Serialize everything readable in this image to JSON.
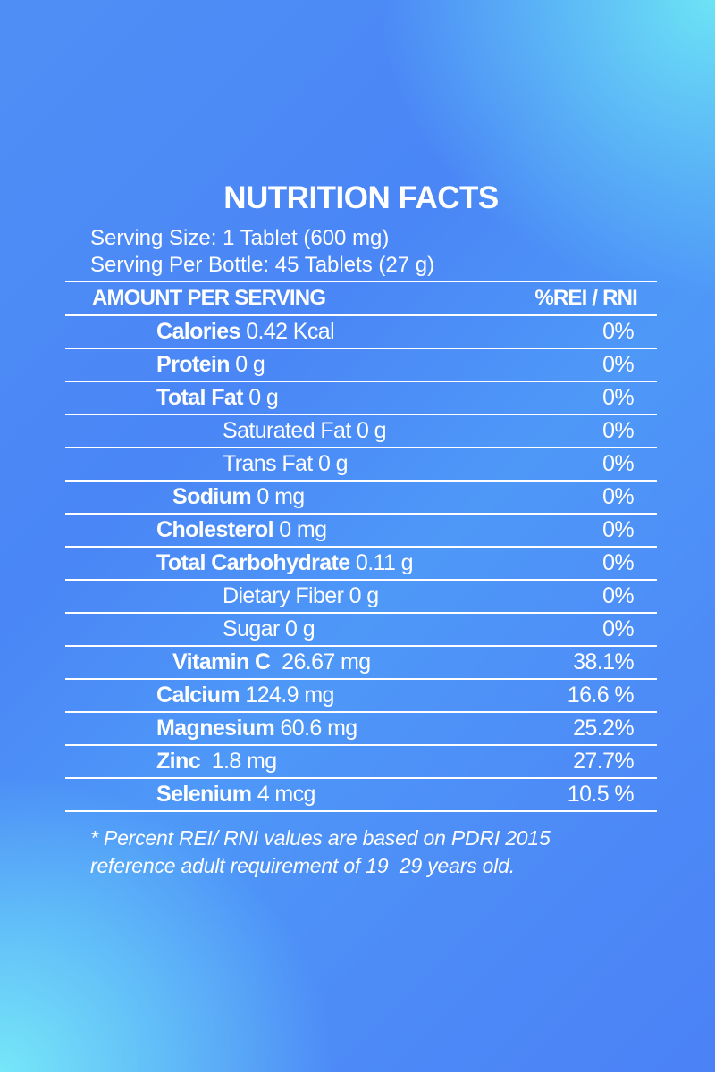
{
  "title": "NUTRITION FACTS",
  "serving_size": "Serving Size: 1 Tablet (600 mg)",
  "serving_per_bottle": "Serving Per Bottle: 45 Tablets (27 g)",
  "header": {
    "left": "AMOUNT PER SERVING",
    "right": "%REI / RNI"
  },
  "rows": [
    {
      "name": "Calories",
      "amount": " 0.42 Kcal",
      "pct": "0%"
    },
    {
      "name": "Protein",
      "amount": " 0 g",
      "pct": "0%"
    },
    {
      "name": "Total Fat",
      "amount": " 0 g",
      "pct": "0%"
    },
    {
      "name": "",
      "amount": "Saturated Fat 0 g",
      "pct": "0%"
    },
    {
      "name": "",
      "amount": "Trans Fat 0 g",
      "pct": "0%"
    },
    {
      "name": "Sodium",
      "amount": " 0 mg",
      "pct": "0%"
    },
    {
      "name": "Cholesterol",
      "amount": " 0 mg",
      "pct": "0%"
    },
    {
      "name": "Total Carbohydrate",
      "amount": " 0.11 g",
      "pct": "0%"
    },
    {
      "name": "",
      "amount": "Dietary Fiber 0 g",
      "pct": "0%"
    },
    {
      "name": "",
      "amount": "Sugar 0 g",
      "pct": "0%"
    },
    {
      "name": "Vitamin C",
      "amount": "  26.67 mg",
      "pct": "38.1%"
    },
    {
      "name": "Calcium",
      "amount": " 124.9 mg",
      "pct": "16.6 %"
    },
    {
      "name": "Magnesium",
      "amount": " 60.6 mg",
      "pct": "25.2%"
    },
    {
      "name": "Zinc",
      "amount": "  1.8 mg",
      "pct": "27.7%"
    },
    {
      "name": "Selenium",
      "amount": " 4 mcg",
      "pct": "10.5 %"
    }
  ],
  "footnote": "* Percent REI/ RNI values are based on PDRI 2015 reference adult requirement of 19  29 years old.",
  "colors": {
    "text": "#ffffff",
    "background_blue": "#4a86f6",
    "background_cyan": "#6ee8f5"
  }
}
